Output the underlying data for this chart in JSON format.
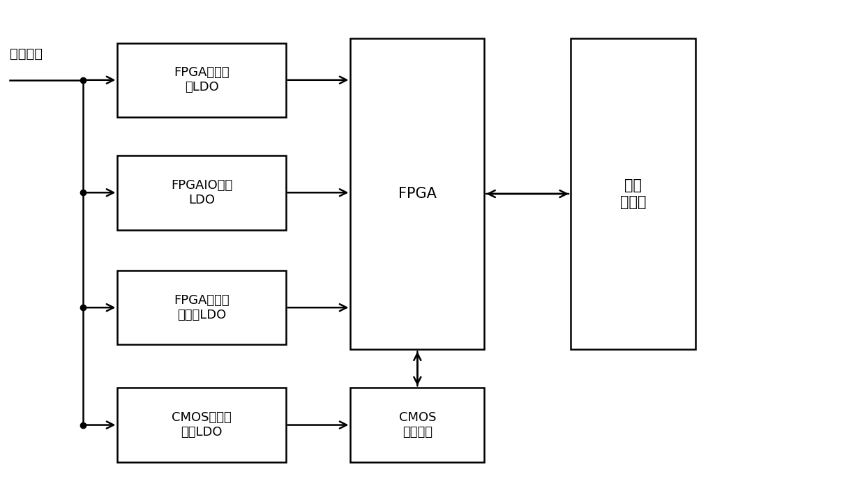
{
  "background_color": "#ffffff",
  "fig_width": 12.4,
  "fig_height": 6.9,
  "dpi": 100,
  "small_labels": [
    "FPGA内核供\n电LDO",
    "FPGAIO供电\nLDO",
    "FPGA辅助电\n源供电LDO",
    "CMOS焦面板\n供电LDO"
  ],
  "fpga_label": "FPGA",
  "cmos_label": "CMOS\n图像传感",
  "controller_label": "成像\n控制器",
  "source_label": "成像供电",
  "font_size_small": 13,
  "font_size_large": 15,
  "font_size_source": 14,
  "line_color": "#000000",
  "box_edge_color": "#000000",
  "box_face_color": "#ffffff",
  "lw": 1.8,
  "arrow_ms": 18
}
